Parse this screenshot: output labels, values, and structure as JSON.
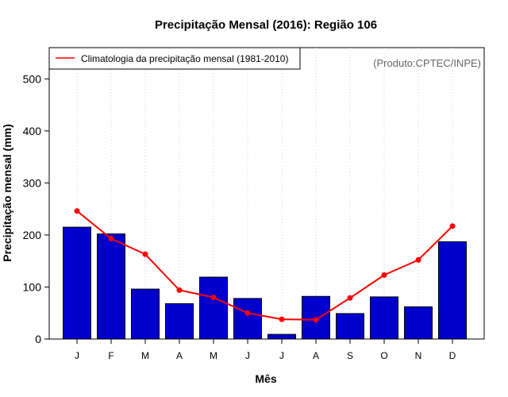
{
  "chart_data": {
    "type": "bar",
    "title": "Precipitação Mensal (2016): Região 106",
    "xlabel": "Mês",
    "ylabel": "Precipitação mensal (mm)",
    "source_note": "(Produto:CPTEC/INPE)",
    "categories": [
      "J",
      "F",
      "M",
      "A",
      "M",
      "J",
      "J",
      "A",
      "S",
      "O",
      "N",
      "D"
    ],
    "ylim": [
      0,
      560
    ],
    "yticks": [
      0,
      100,
      200,
      300,
      400,
      500
    ],
    "grid": "vertical-dotted",
    "legend_position": "top-left",
    "series": [
      {
        "name": "Precipitação mensal (2016)",
        "kind": "bar",
        "color": "#0000CD",
        "values": [
          215,
          202,
          96,
          68,
          119,
          78,
          9,
          82,
          49,
          81,
          62,
          187
        ]
      },
      {
        "name": "Climatologia da precipitação mensal (1981-2010)",
        "kind": "line",
        "color": "#FF0000",
        "values": [
          246,
          193,
          163,
          94,
          80,
          50,
          38,
          37,
          79,
          123,
          152,
          217
        ]
      }
    ]
  }
}
